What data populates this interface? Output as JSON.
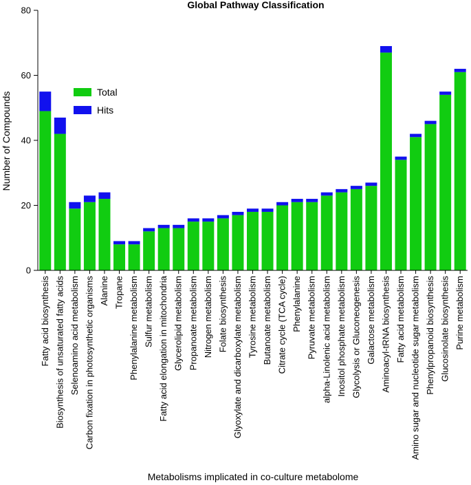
{
  "chart_data": {
    "type": "bar",
    "stacked": true,
    "title": "Global Pathway Classification",
    "xlabel": "Metabolisms implicated in co-culture metabolome",
    "ylabel": "Number of Compounds",
    "ylim": [
      0,
      80
    ],
    "yticks": [
      "0",
      "20",
      "40",
      "60",
      "80"
    ],
    "grid": false,
    "legend_position": "top-left",
    "categories": [
      "Fatty acid biosynthesis",
      "Biosynthesis of unsaturated fatty acids",
      "Selenoamino acid metabolism",
      "Carbon fixation in photosynthetic organisms",
      "Alanine",
      "Tropane",
      "Phenylalanine metabolism",
      "Sulfur metabolism",
      "Fatty acid elongation in mitochondria",
      "Glycerolipid metabolism",
      "Propanoate metabolism",
      "Nitrogen metabolism",
      "Folate biosynthesis",
      "Glyoxylate and dicarboxylate metabolism",
      "Tyrosine metabolism",
      "Butanoate metabolism",
      "Citrate cycle (TCA cycle)",
      "Phenylalanine",
      "Pyruvate metabolism",
      "alpha-Linolenic acid metabolism",
      "Inositol phosphate metabolism",
      "Glycolysis or Gluconeogenesis",
      "Galactose metabolism",
      "Aminoacyl-tRNA biosynthesis",
      "Fatty acid metabolism",
      "Amino sugar and nucleotide sugar metabolism",
      "Phenylpropanoid biosynthesis",
      "Glucosinolate biosynthesis",
      "Purine metabolism"
    ],
    "series": [
      {
        "name": "Total",
        "color": "#11cc11",
        "values": [
          49,
          42,
          19,
          21,
          22,
          8,
          8,
          12,
          13,
          13,
          15,
          15,
          16,
          17,
          18,
          18,
          20,
          21,
          21,
          23,
          24,
          25,
          26,
          67,
          34,
          41,
          45,
          54,
          61
        ]
      },
      {
        "name": "Hits",
        "color": "#1111ee",
        "values": [
          6,
          5,
          2,
          2,
          2,
          1,
          1,
          1,
          1,
          1,
          1,
          1,
          1,
          1,
          1,
          1,
          1,
          1,
          1,
          1,
          1,
          1,
          1,
          2,
          1,
          1,
          1,
          1,
          1
        ]
      }
    ]
  }
}
